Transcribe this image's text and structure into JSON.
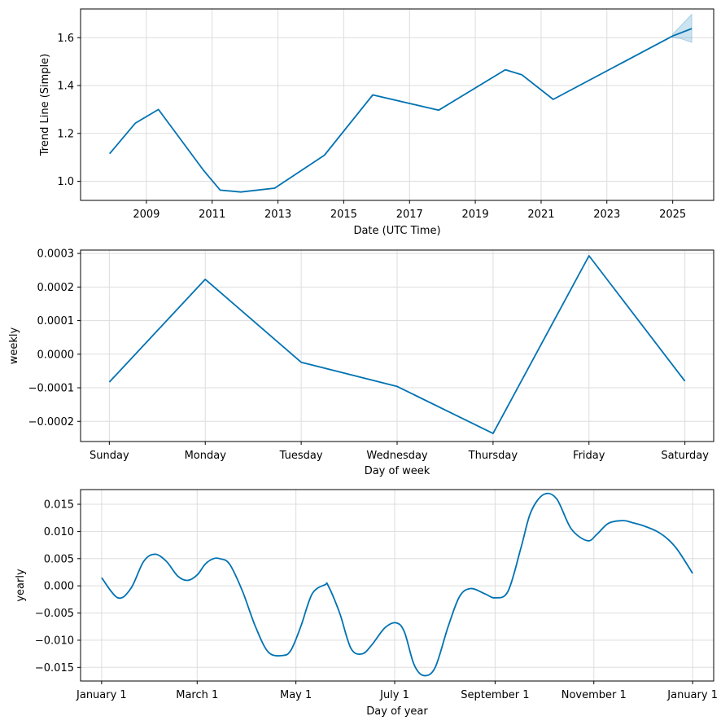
{
  "colors": {
    "line": "#0072b2",
    "band": "#0072b2",
    "grid": "#dddddd",
    "axis": "#000000"
  },
  "chart_data": [
    {
      "type": "line",
      "title": "",
      "xlabel": "Date (UTC Time)",
      "ylabel": "Trend Line (Simple)",
      "grid": true,
      "xlim": [
        "2007-01-01",
        "2026-04-01"
      ],
      "ylim": [
        0.92,
        1.72
      ],
      "x_ticks": [
        "2009-01-01",
        "2011-01-01",
        "2013-01-01",
        "2015-01-01",
        "2017-01-01",
        "2019-01-01",
        "2021-01-01",
        "2023-01-01",
        "2025-01-01"
      ],
      "x_tick_labels": [
        "2009",
        "2011",
        "2013",
        "2015",
        "2017",
        "2019",
        "2021",
        "2023",
        "2025"
      ],
      "y_ticks": [
        1.0,
        1.2,
        1.4,
        1.6
      ],
      "y_tick_labels": [
        "1.0",
        "1.2",
        "1.4",
        "1.6"
      ],
      "series": [
        {
          "x": [
            "2007-11-20",
            "2008-09-01",
            "2009-05-15",
            "2010-10-01",
            "2011-04-01",
            "2011-11-15",
            "2012-11-25",
            "2014-06-01",
            "2015-11-20",
            "2017-11-20",
            "2019-12-01",
            "2020-06-01",
            "2021-05-15",
            "2025-01-01",
            "2025-08-01"
          ],
          "y": [
            1.115,
            1.243,
            1.3,
            1.044,
            0.963,
            0.955,
            0.971,
            1.109,
            1.361,
            1.297,
            1.466,
            1.445,
            1.342,
            1.607,
            1.638
          ]
        }
      ],
      "uncertainty_band": {
        "x": [
          "2025-01-01",
          "2025-04-01",
          "2025-08-01"
        ],
        "lower": [
          1.6,
          1.596,
          1.58
        ],
        "upper": [
          1.614,
          1.65,
          1.698
        ]
      }
    },
    {
      "type": "line",
      "title": "",
      "xlabel": "Day of week",
      "ylabel": "weekly",
      "grid": true,
      "categories": [
        "Sunday",
        "Monday",
        "Tuesday",
        "Wednesday",
        "Thursday",
        "Friday",
        "Saturday"
      ],
      "ylim": [
        -0.00026,
        0.00031
      ],
      "y_ticks": [
        -0.0002,
        -0.0001,
        0.0,
        0.0001,
        0.0002,
        0.0003
      ],
      "y_tick_labels": [
        "−0.0002",
        "−0.0001",
        "0.0000",
        "0.0001",
        "0.0002",
        "0.0003"
      ],
      "series": [
        {
          "values": [
            -8.3e-05,
            0.000223,
            -2.4e-05,
            -9.6e-05,
            -0.000236,
            0.000293,
            -8e-05
          ]
        }
      ]
    },
    {
      "type": "line",
      "title": "",
      "xlabel": "Day of year",
      "ylabel": "yearly",
      "grid": true,
      "xlim": [
        -13,
        378
      ],
      "ylim": [
        -0.0175,
        0.0177
      ],
      "x_ticks": [
        0,
        59,
        120,
        181,
        243,
        304,
        365
      ],
      "x_tick_labels": [
        "January 1",
        "March 1",
        "May 1",
        "July 1",
        "September 1",
        "November 1",
        "January 1"
      ],
      "y_ticks": [
        -0.015,
        -0.01,
        -0.005,
        0.0,
        0.005,
        0.01,
        0.015
      ],
      "y_tick_labels": [
        "−0.015",
        "−0.010",
        "−0.005",
        "0.000",
        "0.005",
        "0.010",
        "0.015"
      ],
      "series": [
        {
          "x": [
            0,
            10,
            18,
            26,
            33,
            40,
            47,
            53,
            59,
            64,
            69,
            73,
            79,
            87,
            95,
            103,
            112,
            117,
            123,
            130,
            138,
            140,
            147,
            154,
            161,
            167,
            175,
            182,
            187,
            193,
            199,
            206,
            214,
            221,
            228,
            237,
            243,
            251,
            259,
            265,
            273,
            281,
            290,
            300,
            306,
            313,
            322,
            328,
            335,
            343,
            350,
            356,
            365
          ],
          "y": [
            0.0015,
            -0.0022,
            -0.0005,
            0.0045,
            0.0058,
            0.0045,
            0.0018,
            0.001,
            0.002,
            0.004,
            0.005,
            0.005,
            0.004,
            -0.001,
            -0.0075,
            -0.0122,
            -0.0128,
            -0.0118,
            -0.0075,
            -0.0015,
            0.0002,
            0.0,
            -0.005,
            -0.0115,
            -0.0125,
            -0.0108,
            -0.0077,
            -0.0068,
            -0.0085,
            -0.0145,
            -0.0165,
            -0.015,
            -0.0075,
            -0.002,
            -0.0005,
            -0.0015,
            -0.0022,
            -0.001,
            0.007,
            0.0135,
            0.0168,
            0.016,
            0.0105,
            0.0083,
            0.0095,
            0.0115,
            0.012,
            0.0116,
            0.011,
            0.01,
            0.0085,
            0.0065,
            0.0023
          ]
        }
      ]
    }
  ]
}
